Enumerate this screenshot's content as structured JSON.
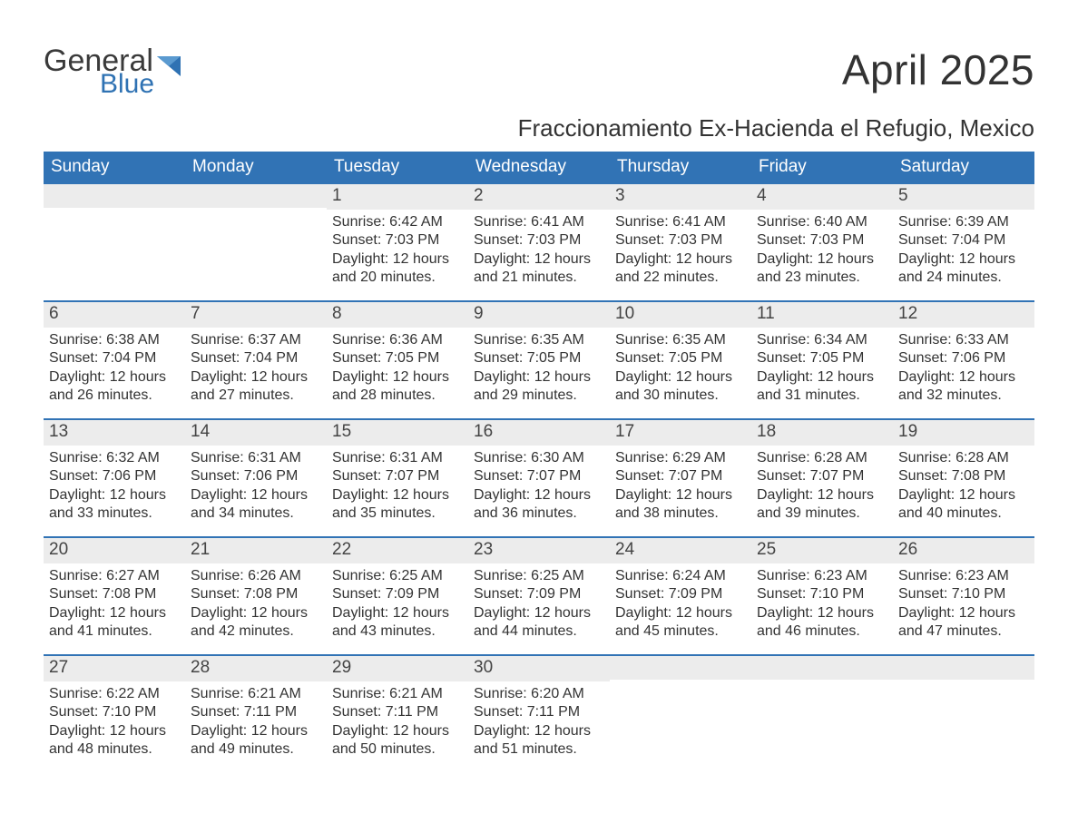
{
  "brand": {
    "top": "General",
    "bottom": "Blue",
    "triangle_color": "#2f72b3"
  },
  "title": "April 2025",
  "subtitle": "Fraccionamiento Ex-Hacienda el Refugio, Mexico",
  "colors": {
    "header_bg": "#3173b5",
    "header_text": "#ffffff",
    "daynum_bg": "#ececec",
    "week_border": "#3173b5",
    "body_text": "#333333",
    "page_bg": "#ffffff"
  },
  "layout": {
    "columns": 7,
    "rows": 5,
    "title_fontsize": 46,
    "subtitle_fontsize": 26,
    "dow_fontsize": 19,
    "daynum_fontsize": 19,
    "body_fontsize": 16
  },
  "days_of_week": [
    "Sunday",
    "Monday",
    "Tuesday",
    "Wednesday",
    "Thursday",
    "Friday",
    "Saturday"
  ],
  "weeks": [
    [
      {
        "n": "",
        "sunrise": "",
        "sunset": "",
        "dl1": "",
        "dl2": ""
      },
      {
        "n": "",
        "sunrise": "",
        "sunset": "",
        "dl1": "",
        "dl2": ""
      },
      {
        "n": "1",
        "sunrise": "Sunrise: 6:42 AM",
        "sunset": "Sunset: 7:03 PM",
        "dl1": "Daylight: 12 hours",
        "dl2": "and 20 minutes."
      },
      {
        "n": "2",
        "sunrise": "Sunrise: 6:41 AM",
        "sunset": "Sunset: 7:03 PM",
        "dl1": "Daylight: 12 hours",
        "dl2": "and 21 minutes."
      },
      {
        "n": "3",
        "sunrise": "Sunrise: 6:41 AM",
        "sunset": "Sunset: 7:03 PM",
        "dl1": "Daylight: 12 hours",
        "dl2": "and 22 minutes."
      },
      {
        "n": "4",
        "sunrise": "Sunrise: 6:40 AM",
        "sunset": "Sunset: 7:03 PM",
        "dl1": "Daylight: 12 hours",
        "dl2": "and 23 minutes."
      },
      {
        "n": "5",
        "sunrise": "Sunrise: 6:39 AM",
        "sunset": "Sunset: 7:04 PM",
        "dl1": "Daylight: 12 hours",
        "dl2": "and 24 minutes."
      }
    ],
    [
      {
        "n": "6",
        "sunrise": "Sunrise: 6:38 AM",
        "sunset": "Sunset: 7:04 PM",
        "dl1": "Daylight: 12 hours",
        "dl2": "and 26 minutes."
      },
      {
        "n": "7",
        "sunrise": "Sunrise: 6:37 AM",
        "sunset": "Sunset: 7:04 PM",
        "dl1": "Daylight: 12 hours",
        "dl2": "and 27 minutes."
      },
      {
        "n": "8",
        "sunrise": "Sunrise: 6:36 AM",
        "sunset": "Sunset: 7:05 PM",
        "dl1": "Daylight: 12 hours",
        "dl2": "and 28 minutes."
      },
      {
        "n": "9",
        "sunrise": "Sunrise: 6:35 AM",
        "sunset": "Sunset: 7:05 PM",
        "dl1": "Daylight: 12 hours",
        "dl2": "and 29 minutes."
      },
      {
        "n": "10",
        "sunrise": "Sunrise: 6:35 AM",
        "sunset": "Sunset: 7:05 PM",
        "dl1": "Daylight: 12 hours",
        "dl2": "and 30 minutes."
      },
      {
        "n": "11",
        "sunrise": "Sunrise: 6:34 AM",
        "sunset": "Sunset: 7:05 PM",
        "dl1": "Daylight: 12 hours",
        "dl2": "and 31 minutes."
      },
      {
        "n": "12",
        "sunrise": "Sunrise: 6:33 AM",
        "sunset": "Sunset: 7:06 PM",
        "dl1": "Daylight: 12 hours",
        "dl2": "and 32 minutes."
      }
    ],
    [
      {
        "n": "13",
        "sunrise": "Sunrise: 6:32 AM",
        "sunset": "Sunset: 7:06 PM",
        "dl1": "Daylight: 12 hours",
        "dl2": "and 33 minutes."
      },
      {
        "n": "14",
        "sunrise": "Sunrise: 6:31 AM",
        "sunset": "Sunset: 7:06 PM",
        "dl1": "Daylight: 12 hours",
        "dl2": "and 34 minutes."
      },
      {
        "n": "15",
        "sunrise": "Sunrise: 6:31 AM",
        "sunset": "Sunset: 7:07 PM",
        "dl1": "Daylight: 12 hours",
        "dl2": "and 35 minutes."
      },
      {
        "n": "16",
        "sunrise": "Sunrise: 6:30 AM",
        "sunset": "Sunset: 7:07 PM",
        "dl1": "Daylight: 12 hours",
        "dl2": "and 36 minutes."
      },
      {
        "n": "17",
        "sunrise": "Sunrise: 6:29 AM",
        "sunset": "Sunset: 7:07 PM",
        "dl1": "Daylight: 12 hours",
        "dl2": "and 38 minutes."
      },
      {
        "n": "18",
        "sunrise": "Sunrise: 6:28 AM",
        "sunset": "Sunset: 7:07 PM",
        "dl1": "Daylight: 12 hours",
        "dl2": "and 39 minutes."
      },
      {
        "n": "19",
        "sunrise": "Sunrise: 6:28 AM",
        "sunset": "Sunset: 7:08 PM",
        "dl1": "Daylight: 12 hours",
        "dl2": "and 40 minutes."
      }
    ],
    [
      {
        "n": "20",
        "sunrise": "Sunrise: 6:27 AM",
        "sunset": "Sunset: 7:08 PM",
        "dl1": "Daylight: 12 hours",
        "dl2": "and 41 minutes."
      },
      {
        "n": "21",
        "sunrise": "Sunrise: 6:26 AM",
        "sunset": "Sunset: 7:08 PM",
        "dl1": "Daylight: 12 hours",
        "dl2": "and 42 minutes."
      },
      {
        "n": "22",
        "sunrise": "Sunrise: 6:25 AM",
        "sunset": "Sunset: 7:09 PM",
        "dl1": "Daylight: 12 hours",
        "dl2": "and 43 minutes."
      },
      {
        "n": "23",
        "sunrise": "Sunrise: 6:25 AM",
        "sunset": "Sunset: 7:09 PM",
        "dl1": "Daylight: 12 hours",
        "dl2": "and 44 minutes."
      },
      {
        "n": "24",
        "sunrise": "Sunrise: 6:24 AM",
        "sunset": "Sunset: 7:09 PM",
        "dl1": "Daylight: 12 hours",
        "dl2": "and 45 minutes."
      },
      {
        "n": "25",
        "sunrise": "Sunrise: 6:23 AM",
        "sunset": "Sunset: 7:10 PM",
        "dl1": "Daylight: 12 hours",
        "dl2": "and 46 minutes."
      },
      {
        "n": "26",
        "sunrise": "Sunrise: 6:23 AM",
        "sunset": "Sunset: 7:10 PM",
        "dl1": "Daylight: 12 hours",
        "dl2": "and 47 minutes."
      }
    ],
    [
      {
        "n": "27",
        "sunrise": "Sunrise: 6:22 AM",
        "sunset": "Sunset: 7:10 PM",
        "dl1": "Daylight: 12 hours",
        "dl2": "and 48 minutes."
      },
      {
        "n": "28",
        "sunrise": "Sunrise: 6:21 AM",
        "sunset": "Sunset: 7:11 PM",
        "dl1": "Daylight: 12 hours",
        "dl2": "and 49 minutes."
      },
      {
        "n": "29",
        "sunrise": "Sunrise: 6:21 AM",
        "sunset": "Sunset: 7:11 PM",
        "dl1": "Daylight: 12 hours",
        "dl2": "and 50 minutes."
      },
      {
        "n": "30",
        "sunrise": "Sunrise: 6:20 AM",
        "sunset": "Sunset: 7:11 PM",
        "dl1": "Daylight: 12 hours",
        "dl2": "and 51 minutes."
      },
      {
        "n": "",
        "sunrise": "",
        "sunset": "",
        "dl1": "",
        "dl2": ""
      },
      {
        "n": "",
        "sunrise": "",
        "sunset": "",
        "dl1": "",
        "dl2": ""
      },
      {
        "n": "",
        "sunrise": "",
        "sunset": "",
        "dl1": "",
        "dl2": ""
      }
    ]
  ]
}
